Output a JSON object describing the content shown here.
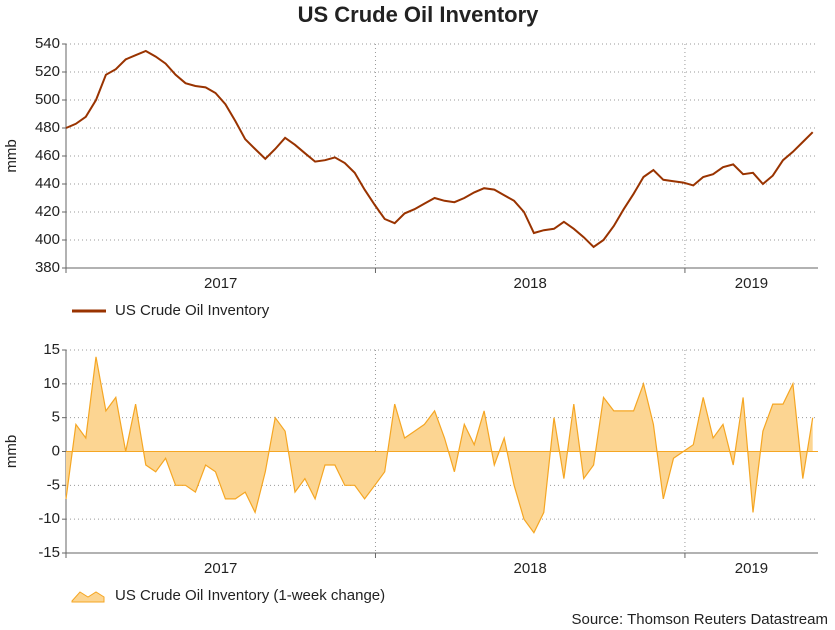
{
  "chart_data": [
    {
      "type": "line",
      "title": "US Crude Oil Inventory",
      "ylabel": "mmb",
      "x": [
        2017,
        2017.032,
        2017.064,
        2017.097,
        2017.129,
        2017.161,
        2017.193,
        2017.225,
        2017.258,
        2017.29,
        2017.322,
        2017.354,
        2017.386,
        2017.418,
        2017.451,
        2017.483,
        2017.515,
        2017.547,
        2017.579,
        2017.611,
        2017.644,
        2017.676,
        2017.708,
        2017.74,
        2017.772,
        2017.805,
        2017.837,
        2017.869,
        2017.901,
        2017.933,
        2017.965,
        2017.998,
        2018.03,
        2018.062,
        2018.094,
        2018.126,
        2018.158,
        2018.191,
        2018.223,
        2018.255,
        2018.287,
        2018.319,
        2018.351,
        2018.384,
        2018.416,
        2018.448,
        2018.48,
        2018.512,
        2018.544,
        2018.577,
        2018.609,
        2018.641,
        2018.673,
        2018.705,
        2018.737,
        2018.77,
        2018.802,
        2018.834,
        2018.866,
        2018.898,
        2018.93,
        2018.963,
        2018.995,
        2019.027,
        2019.059,
        2019.091,
        2019.123,
        2019.156,
        2019.188,
        2019.22,
        2019.252,
        2019.284,
        2019.317,
        2019.349,
        2019.381,
        2019.413
      ],
      "series": [
        {
          "name": "US Crude Oil Inventory",
          "color": "#993300",
          "values": [
            480,
            483,
            488,
            500,
            518,
            522,
            529,
            532,
            535,
            531,
            526,
            518,
            512,
            510,
            509,
            505,
            497,
            485,
            472,
            465,
            458,
            465,
            473,
            468,
            462,
            456,
            457,
            459,
            455,
            448,
            436,
            425,
            415,
            412,
            419,
            422,
            426,
            430,
            428,
            427,
            430,
            434,
            437,
            436,
            432,
            428,
            420,
            405,
            407,
            408,
            413,
            408,
            402,
            395,
            400,
            410,
            422,
            433,
            445,
            450,
            443,
            442,
            441,
            439,
            445,
            447,
            452,
            454,
            447,
            448,
            440,
            446,
            457,
            463,
            470,
            477
          ]
        }
      ],
      "xlim": [
        2017,
        2019.43
      ],
      "xticks": [
        2017,
        2018,
        2019
      ],
      "ylim": [
        380,
        540
      ],
      "yticks": [
        380,
        400,
        420,
        440,
        460,
        480,
        500,
        520,
        540
      ],
      "grid": true
    },
    {
      "type": "area",
      "ylabel": "mmb",
      "annotation": "Source: Thomson Reuters Datastream",
      "x": [
        2017,
        2017.032,
        2017.064,
        2017.097,
        2017.129,
        2017.161,
        2017.193,
        2017.225,
        2017.258,
        2017.29,
        2017.322,
        2017.354,
        2017.386,
        2017.418,
        2017.451,
        2017.483,
        2017.515,
        2017.547,
        2017.579,
        2017.611,
        2017.644,
        2017.676,
        2017.708,
        2017.74,
        2017.772,
        2017.805,
        2017.837,
        2017.869,
        2017.901,
        2017.933,
        2017.965,
        2017.998,
        2018.03,
        2018.062,
        2018.094,
        2018.126,
        2018.158,
        2018.191,
        2018.223,
        2018.255,
        2018.287,
        2018.319,
        2018.351,
        2018.384,
        2018.416,
        2018.448,
        2018.48,
        2018.512,
        2018.544,
        2018.577,
        2018.609,
        2018.641,
        2018.673,
        2018.705,
        2018.737,
        2018.77,
        2018.802,
        2018.834,
        2018.866,
        2018.898,
        2018.93,
        2018.963,
        2018.995,
        2019.027,
        2019.059,
        2019.091,
        2019.123,
        2019.156,
        2019.188,
        2019.22,
        2019.252,
        2019.284,
        2019.317,
        2019.349,
        2019.381,
        2019.413
      ],
      "series": [
        {
          "name": "US Crude Oil Inventory (1-week change)",
          "color": "#f5a623",
          "fill": "#fcd592",
          "values": [
            -7,
            4,
            2,
            14,
            6,
            8,
            0,
            7,
            -2,
            -3,
            -1,
            -5,
            -5,
            -6,
            -2,
            -3,
            -7,
            -7,
            -6,
            -9,
            -3,
            5,
            3,
            -6,
            -4,
            -7,
            -2,
            -2,
            -5,
            -5,
            -7,
            -5,
            -3,
            7,
            2,
            3,
            4,
            6,
            2,
            -3,
            4,
            1,
            6,
            -2,
            2,
            -5,
            -10,
            -12,
            -9,
            5,
            -4,
            7,
            -4,
            -2,
            8,
            6,
            6,
            6,
            10,
            4,
            -7,
            -1,
            0,
            1,
            8,
            2,
            4,
            -2,
            8,
            -9,
            3,
            7,
            7,
            10,
            -4,
            5
          ]
        }
      ],
      "xlim": [
        2017,
        2019.43
      ],
      "xticks": [
        2017,
        2018,
        2019
      ],
      "ylim": [
        -15,
        15
      ],
      "yticks": [
        -15,
        -10,
        -5,
        0,
        5,
        10,
        15
      ],
      "grid": true
    }
  ]
}
